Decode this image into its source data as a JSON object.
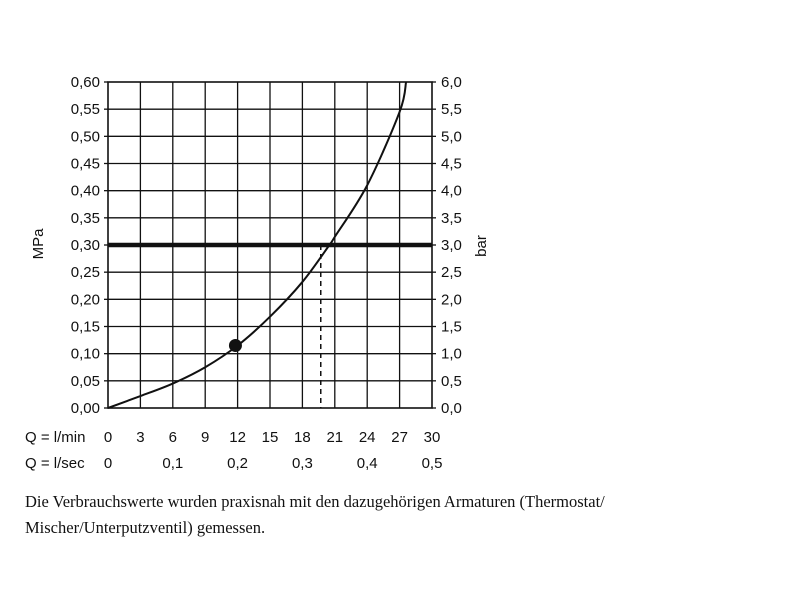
{
  "chart_data": {
    "type": "line",
    "left_axis": {
      "label": "MPa",
      "ticks": [
        "0,00",
        "0,05",
        "0,10",
        "0,15",
        "0,20",
        "0,25",
        "0,30",
        "0,35",
        "0,40",
        "0,45",
        "0,50",
        "0,55",
        "0,60"
      ],
      "range": [
        0,
        0.6
      ]
    },
    "right_axis": {
      "label": "bar",
      "ticks": [
        "0,0",
        "0,5",
        "1,0",
        "1,5",
        "2,0",
        "2,5",
        "3,0",
        "3,5",
        "4,0",
        "4,5",
        "5,0",
        "5,5",
        "6,0"
      ],
      "range": [
        0,
        6
      ]
    },
    "x_axis_lmin": {
      "label": "Q = l/min",
      "ticks": [
        "0",
        "3",
        "6",
        "9",
        "12",
        "15",
        "18",
        "21",
        "24",
        "27",
        "30"
      ],
      "range": [
        0,
        30
      ]
    },
    "x_axis_lsec": {
      "label": "Q = l/sec",
      "ticks": [
        "0",
        "0,1",
        "0,2",
        "0,3",
        "0,4",
        "0,5"
      ],
      "tick_values": [
        0,
        6,
        12,
        18,
        24,
        30
      ]
    },
    "grid": true,
    "series": [
      {
        "points": [
          [
            0,
            0
          ],
          [
            3,
            0.022
          ],
          [
            6,
            0.045
          ],
          [
            9,
            0.075
          ],
          [
            12,
            0.115
          ],
          [
            15,
            0.168
          ],
          [
            18,
            0.232
          ],
          [
            20.5,
            0.3
          ],
          [
            21,
            0.315
          ],
          [
            24,
            0.41
          ],
          [
            27,
            0.545
          ],
          [
            27.6,
            0.6
          ]
        ]
      }
    ],
    "reference_line": {
      "y": 0.3
    },
    "marker_point": {
      "x": 11.8,
      "y": 0.115
    },
    "drop_line": {
      "x": 19.7,
      "y_from": 0.3,
      "y_to": 0
    }
  },
  "footnote": "Die Verbrauchswerte wurden praxisnah mit den dazugehörigen Armaturen (Thermostat/ Mischer/Unterputzventil) gemessen."
}
